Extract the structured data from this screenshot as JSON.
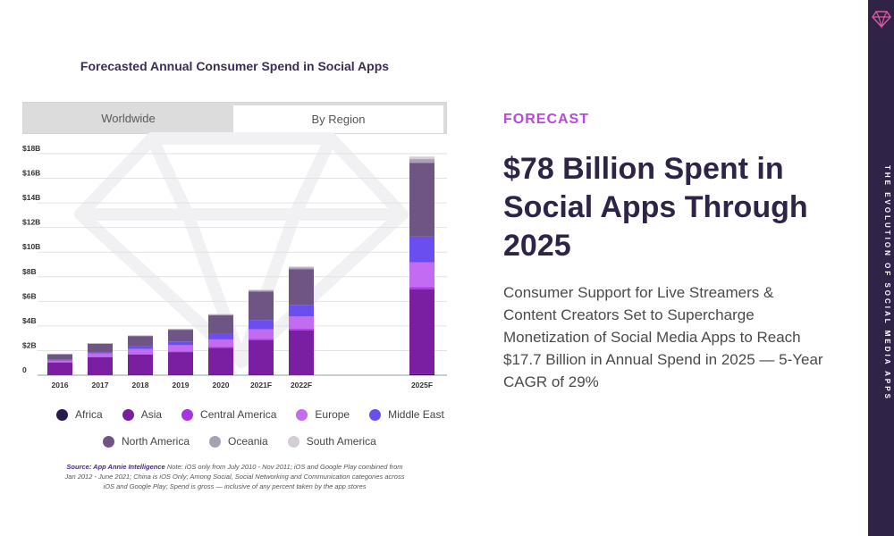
{
  "chart_title": "Forecasted Annual Consumer Spend in Social Apps",
  "tabs": [
    {
      "label": "Worldwide",
      "active": false
    },
    {
      "label": "By Region",
      "active": true
    }
  ],
  "legend_row1": [
    "Africa",
    "Asia",
    "Central America",
    "Europe",
    "Middle East"
  ],
  "legend_row2": [
    "North America",
    "Oceania",
    "South America"
  ],
  "source": {
    "label": "Source: App Annie Intelligence",
    "note": "Note: iOS only from July 2010 - Nov 2011; iOS and Google Play combined from Jan 2012 - June 2021; China is iOS Only; Among Social, Social Networking and Communication categories across iOS and Google Play; Spend is gross — inclusive of any percent taken by the app stores"
  },
  "eyebrow": "FORECAST",
  "headline": "$78 Billion Spent in Social Apps Through 2025",
  "subtext": "Consumer Support for Live Streamers & Content Creators Set to Supercharge Monetization of Social Media Apps to Reach $17.7 Billion in Annual Spend in 2025 — 5-Year CAGR of 29%",
  "sidebar_text": "The Evolution of Social Media Apps",
  "chart_data": {
    "type": "bar",
    "stacked": true,
    "categories": [
      "2016",
      "2017",
      "2018",
      "2019",
      "2020",
      "2021F",
      "2022F",
      "2025F"
    ],
    "ylim": [
      0,
      18
    ],
    "yticks": [
      "0",
      "$2B",
      "$4B",
      "$6B",
      "$8B",
      "$10B",
      "$12B",
      "$14B",
      "$16B",
      "$18B"
    ],
    "grid": true,
    "series": [
      {
        "name": "Africa",
        "color": "#2b1b4d",
        "values": [
          0.02,
          0.02,
          0.03,
          0.03,
          0.03,
          0.04,
          0.05,
          0.08
        ]
      },
      {
        "name": "Asia",
        "color": "#7a1fa2",
        "values": [
          1.0,
          1.45,
          1.65,
          1.85,
          2.2,
          2.8,
          3.6,
          6.9
        ]
      },
      {
        "name": "Central America",
        "color": "#a834e0",
        "values": [
          0.03,
          0.04,
          0.05,
          0.06,
          0.08,
          0.1,
          0.12,
          0.18
        ]
      },
      {
        "name": "Europe",
        "color": "#c36cf2",
        "values": [
          0.15,
          0.25,
          0.4,
          0.5,
          0.6,
          0.8,
          1.0,
          2.0
        ]
      },
      {
        "name": "Middle East",
        "color": "#6a4ef0",
        "values": [
          0.05,
          0.1,
          0.2,
          0.3,
          0.5,
          0.75,
          0.95,
          2.1
        ]
      },
      {
        "name": "North America",
        "color": "#6e5583",
        "values": [
          0.45,
          0.7,
          0.85,
          0.95,
          1.45,
          2.3,
          2.9,
          6.0
        ]
      },
      {
        "name": "Oceania",
        "color": "#a8a0b4",
        "values": [
          0.02,
          0.03,
          0.04,
          0.05,
          0.07,
          0.1,
          0.13,
          0.3
        ]
      },
      {
        "name": "South America",
        "color": "#d2cdd6",
        "values": [
          0.01,
          0.01,
          0.02,
          0.03,
          0.04,
          0.06,
          0.08,
          0.2
        ]
      }
    ]
  }
}
